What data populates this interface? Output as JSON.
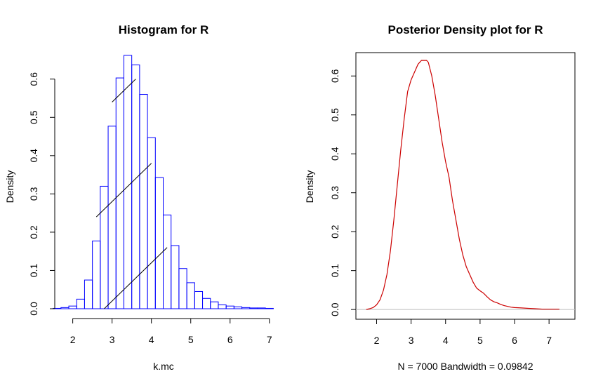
{
  "chart_data": [
    {
      "type": "bar",
      "title": "Histogram for R",
      "xlabel": "k.mc",
      "ylabel": "Density",
      "xlim": [
        1.4,
        7.2
      ],
      "ylim": [
        0,
        0.66
      ],
      "xticks": [
        "2",
        "3",
        "4",
        "5",
        "6",
        "7"
      ],
      "yticks": [
        "0.0",
        "0.1",
        "0.2",
        "0.3",
        "0.4",
        "0.5",
        "0.6"
      ],
      "bar_color": "#0000ff",
      "bins": [
        {
          "start": 1.5,
          "end": 1.7,
          "density": 0.001
        },
        {
          "start": 1.7,
          "end": 1.9,
          "density": 0.003
        },
        {
          "start": 1.9,
          "end": 2.1,
          "density": 0.007
        },
        {
          "start": 2.1,
          "end": 2.3,
          "density": 0.025
        },
        {
          "start": 2.3,
          "end": 2.5,
          "density": 0.075
        },
        {
          "start": 2.5,
          "end": 2.7,
          "density": 0.177
        },
        {
          "start": 2.7,
          "end": 2.9,
          "density": 0.32
        },
        {
          "start": 2.9,
          "end": 3.1,
          "density": 0.477
        },
        {
          "start": 3.1,
          "end": 3.3,
          "density": 0.603
        },
        {
          "start": 3.3,
          "end": 3.5,
          "density": 0.662
        },
        {
          "start": 3.5,
          "end": 3.7,
          "density": 0.637
        },
        {
          "start": 3.7,
          "end": 3.9,
          "density": 0.56
        },
        {
          "start": 3.9,
          "end": 4.1,
          "density": 0.447
        },
        {
          "start": 4.1,
          "end": 4.3,
          "density": 0.343
        },
        {
          "start": 4.3,
          "end": 4.5,
          "density": 0.245
        },
        {
          "start": 4.5,
          "end": 4.7,
          "density": 0.165
        },
        {
          "start": 4.7,
          "end": 4.9,
          "density": 0.105
        },
        {
          "start": 4.9,
          "end": 5.1,
          "density": 0.068
        },
        {
          "start": 5.1,
          "end": 5.3,
          "density": 0.045
        },
        {
          "start": 5.3,
          "end": 5.5,
          "density": 0.027
        },
        {
          "start": 5.5,
          "end": 5.7,
          "density": 0.018
        },
        {
          "start": 5.7,
          "end": 5.9,
          "density": 0.01
        },
        {
          "start": 5.9,
          "end": 6.1,
          "density": 0.007
        },
        {
          "start": 6.1,
          "end": 6.3,
          "density": 0.005
        },
        {
          "start": 6.3,
          "end": 6.5,
          "density": 0.003
        },
        {
          "start": 6.5,
          "end": 6.7,
          "density": 0.002
        },
        {
          "start": 6.7,
          "end": 6.9,
          "density": 0.002
        },
        {
          "start": 6.9,
          "end": 7.1,
          "density": 0.001
        }
      ],
      "overlay_lines": [
        {
          "x": [
            3.0,
            3.6
          ],
          "y": [
            0.54,
            0.6
          ]
        },
        {
          "x": [
            2.6,
            4.0
          ],
          "y": [
            0.24,
            0.38
          ]
        },
        {
          "x": [
            2.8,
            4.4
          ],
          "y": [
            0.0,
            0.16
          ]
        }
      ]
    },
    {
      "type": "line",
      "title": "Posterior Density plot for R",
      "xlabel": "N = 7000   Bandwidth = 0.09842",
      "ylabel": "Density",
      "xlim": [
        1.4,
        7.75
      ],
      "ylim": [
        -0.025,
        0.66
      ],
      "xticks": [
        "2",
        "3",
        "4",
        "5",
        "6",
        "7"
      ],
      "yticks": [
        "0.0",
        "0.1",
        "0.2",
        "0.3",
        "0.4",
        "0.5",
        "0.6"
      ],
      "line_color": "#cc0000",
      "baseline_color": "#bebebe",
      "x": [
        1.7,
        1.8,
        1.9,
        2.0,
        2.1,
        2.2,
        2.3,
        2.4,
        2.5,
        2.6,
        2.7,
        2.8,
        2.9,
        3.0,
        3.1,
        3.2,
        3.3,
        3.4,
        3.45,
        3.5,
        3.6,
        3.7,
        3.8,
        3.9,
        4.0,
        4.1,
        4.2,
        4.3,
        4.4,
        4.5,
        4.6,
        4.7,
        4.8,
        4.9,
        5.0,
        5.1,
        5.2,
        5.3,
        5.4,
        5.5,
        5.6,
        5.7,
        5.8,
        5.9,
        6.0,
        6.2,
        6.4,
        6.6,
        6.8,
        7.0,
        7.2,
        7.3
      ],
      "y": [
        0.0,
        0.002,
        0.005,
        0.012,
        0.025,
        0.05,
        0.09,
        0.15,
        0.23,
        0.32,
        0.41,
        0.49,
        0.56,
        0.59,
        0.61,
        0.63,
        0.64,
        0.64,
        0.64,
        0.635,
        0.6,
        0.55,
        0.49,
        0.43,
        0.38,
        0.34,
        0.28,
        0.23,
        0.18,
        0.14,
        0.11,
        0.09,
        0.07,
        0.055,
        0.048,
        0.042,
        0.033,
        0.025,
        0.02,
        0.017,
        0.013,
        0.01,
        0.008,
        0.006,
        0.005,
        0.004,
        0.003,
        0.002,
        0.001,
        0.001,
        0.001,
        0.001
      ]
    }
  ]
}
